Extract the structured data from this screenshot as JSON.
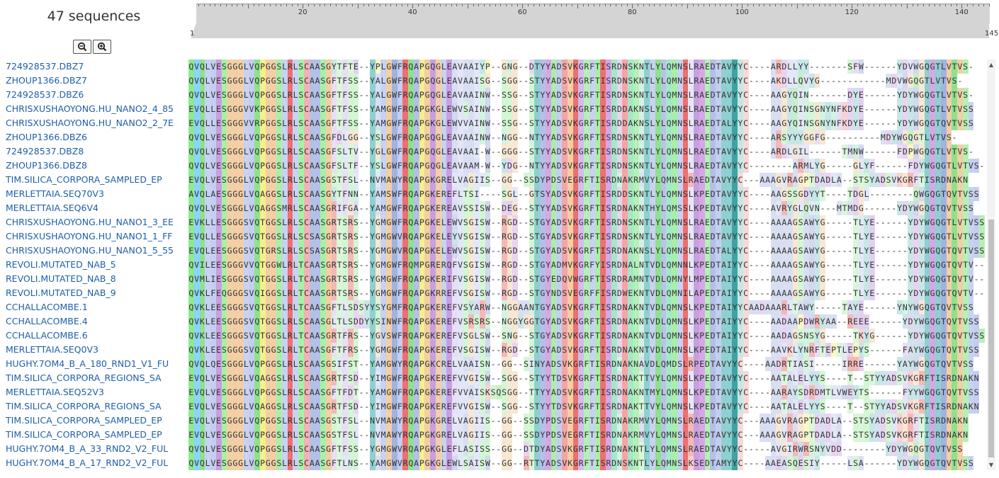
{
  "header": {
    "sequence_count": "47 sequences"
  },
  "ruler": {
    "ticks": [
      "20",
      "40",
      "60",
      "80",
      "100",
      "120",
      "140"
    ],
    "start_label": "1",
    "end_label": "145"
  },
  "zoom": {
    "out_icon": "zoom-out-icon",
    "in_icon": "zoom-in-icon"
  },
  "sequences": [
    {
      "name": "724928537.DBZ7",
      "seq": "QVQLVESGGGLVQPGGSLRLSCAASGYTFTE--YPLGWFRQAPGQGLEAVAAIYP--GNG--DTYYADSVKGRFTISRDNSKNTLYLQMNSLRAEDTAVYYC----ARDLLYY-------SFW------YDVWGQGTLVTVS-"
    },
    {
      "name": "ZHOUP1366.DBZ7",
      "seq": "QVQLVESGGGLVQPGGSLRLSCAASGFTFSS--YALGWFRQAPGQGLEAVAAISG--SGG--STYYADSVKGRFTISRDNSKNTLYLQMNSLRAEDTAVYYC----AKDLLQVYG------------MDVWGQGTLVTVS-"
    },
    {
      "name": "724928537.DBZ6",
      "seq": "QVQLVESGGGLVQPGGSLRLSCAASGFTFSS--YALGWFRQAPGQGLEAVAAINW--SSG--STYYADSVKGRFTISRDNSKNTLYLQMNSLRAEDTAVYYC----AAGYQIN-------DYE------YDYWGQGTLVTVS-"
    },
    {
      "name": "CHRISXUSHAOYONG.HU_NANO2_4_85",
      "seq": "EVQLLESGGGVVKPGGSLRLSCAASGFTFSS--YAMGWFRQAPGKGLEWVSAINW--SSG--STYYADSVKGRFTISRDDAKNSLYLQMNSLRAEDTAVYYC----AAGYQINSGNYNFKDYE------YDYWGQGTLVTVSS"
    },
    {
      "name": "CHRISXUSHAOYONG.HU_NANO2_2_7E",
      "seq": "EVQLLESGGGVVRPGGSLRLSCAASGFTFSS--YAMGWFRQAPGKGLEWVVAINW--SSG--STYYADSVKGRFTISRDDAKNSLYLQMNSLRAEDTALYYC----AAGYQINSGNYNFKDYE------YDYWGQGTQVTVSS"
    },
    {
      "name": "ZHOUP1366.DBZ6",
      "seq": "QVQLVESGGGLVQPGGSLRLSCAASGFDLGG--YSLGWFRQAPGQGLEAVAAINW--NGG--NTYYADSVKGRFTISRDNSKNTLYLQMNSLRAEDTAVYYC----ARSYYYGGFG----------MDYWGQGTLVTVS-"
    },
    {
      "name": "724928537.DBZ8",
      "seq": "QVQLVESGGGLVQPGGSLRLSCAASGFSLTV--YGLGWFRQAPGQGLEAVAAI-W--GGG--STYYADSVKGRFTISRDNSKNTLYLQMNSLRAEDTAVYYC----ARDLGIL------TMNW------FDPWGQGTLVTVS-"
    },
    {
      "name": "ZHOUP1366.DBZ8",
      "seq": "QVQLVESGGGLVQPGGSLRLSCAASGFSLTF--YSLGWFRQAPGQGLEAVAAM-W--YDG--NTYYADSVKGRFTISRDNSKNTLYLQMNSLRAEDTAVYYC--------ARMLYG-----GLYF------FDYWGQGTLVTVS-"
    },
    {
      "name": "TIM.SILICA_CORPORA_SAMPLED_EP",
      "seq": "EVQLVESGGGLVQPGGSLRLSCAASGSTFSL--NVMAWYRQAPGKGRELVAGIIS--GG--SSDYPDSVEGRFTISRDNAKRMVYLQMNSLRAEDTAVYYC---AAAGVRAGPTDADLA--STSYADSVKGRFTISRDNAKN"
    },
    {
      "name": "MERLETTAIA.SEQ70V3",
      "seq": "AVQLAESGGGLVQAGGSLRLSCAASGYTFNN--YAMSWFRQAPGKEREFLTSI----SGL--GTSYADSVKGRFTISRDDSKNTLYLQMNSLKPEDTAVYYC----AAGSSGDYYT----TDGL--------QWGQGTQVTVSS"
    },
    {
      "name": "MERLETTAIA.SEQ6V4",
      "seq": "QVQLVESGGGLVQAGGSMRLSCAASGRIFGA--YAMGWFRQAPGKEREAVSSISW--DEG--STYYADSVKGRFTISRDNAKNTHYLQMSSLKPEDTAVYYC----AVRYGLQVN---MTMDG------YDYWGQGTQVTVSS"
    },
    {
      "name": "CHRISXUSHAOYONG.HU_NANO1_3_EE",
      "seq": "EVKLLESGGGSVQTGGSLRLSCAASGRTSRS--YGMGWFRQAPGKELEWVSGISW--RGD--STGYADSVKGRFTISRDNSKNTLYLQMNSLRAEDTAVYYC----AAAAGSAWYG-----TLYE------YDYWGQGTLVTVSS"
    },
    {
      "name": "CHRISXUSHAOYONG.HU_NANO1_1_FF",
      "seq": "EVQLLESGGGSVQTGGSLRLSCSASGRTSRS--YGMGWVRQAPGKELEYVSGISW--RGD--STGYADSVKGRFTISRDNSKNTLYLQMNSLRAEDTAVYYC----AAAAGSAWYG-----TLYE------YDYWGQGTLVTVSS"
    },
    {
      "name": "CHRISXUSHAOYONG.HU_NANO1_5_55",
      "seq": "EVQLEESGGGSVQTGRSLRLSCSASGRTSRS--YGMGWVRQAPGKELEWVSGISW--RGD--STGYADSVKGRFTISRDNAKNSLYLQMNSLRAEDTALYYC----AAAAGSAWYG-----TLYE------YDYWGQGTQVTVSS"
    },
    {
      "name": "REVOLI.MUTATED_NAB_5",
      "seq": "QVILEESGGGVVQTGGWLRLTCAASGRTSRS--YGMGWFRQMPGRERQFVSGISW--RGD--STGYADMVKGRFYISRDNALNTVDLQMNNLKPEDTAIYYC----AAAAGSAWYG-----TLYE------YDYWGQGTQVTV--"
    },
    {
      "name": "REVOLI.MUTATED_NAB_8",
      "seq": "QVMLIESGGGSVQTGGSLRLTCAASGRTSRS--YGMGWFRQAPGKERIFVSGISW--RGD--STGYEDQVWGRFTISRDRAMNTVDLQMNYLMPEDTAIYYC----AAAAGSAWYG-----TLYE------YDYWGQGTQVTV--"
    },
    {
      "name": "REVOLI.MUTATED_NAB_9",
      "seq": "QVKLFEQGGGSVQIGGSLRLTCAASGRTSRS--YGMGWFRQAPGKRREFVSGISW--RGD--STGYNDSVEGRFFISRDWEKNTVDLQMNILAPEDTAIYYC----AAAAGSAWYG-----TLYE------YDYWGQGTQVTV--"
    },
    {
      "name": "CCHALLACOMBE.1",
      "seq": "QVKLEESGGGSVQTGGSLRLTCAASGFTLSDSYYSYGMFRQAPGKEREFVSYARW--NGGAANTGYADSVKGRFTISRDNAKNTVDLQMNSLKPEDTAIYYCAADAAARLTAWY-----TAYE------YNYWGQGTQVTVSS"
    },
    {
      "name": "CCHALLACOMBE.4",
      "seq": "QVKLEESGGGSVQTGGSLRLSCAASGLTLSDDYYSINWFRQAPGKEREFVSRSRS--NGGYGGTGYADSVKGRFTISRDNAKNTVDLQMNSLKPEDTAIYYC----AADAAPDWRYAA--REEE------YDYWGQGTQVTVSS"
    },
    {
      "name": "CCHALLACOMBE.6",
      "seq": "QVKLEESGGGSVQTGGSLRLTCAASGRTFRS--YGVSWFRQAPGKEREFVSGLSW--SNG--STGYADSVKGRFTISRDNAKNTVDLQMNSLKPEDTAIYYC----AADAGSNSYG-----TKYG------YDYWGQGTQVTVSS"
    },
    {
      "name": "MERLETTAIA.SEQ0V3",
      "seq": "QVKLEESGGGSVQTGGSLRLTCAASGFTFRS--YGMGWFRQAPGKEREFVSGISW--RGD--STGYADSVKGRFTISRDNAKNTVDLQMNSLKPEDTAIYYC----AAVKLYNRFTEPTLEPYS------FAYWGQGTQVTVSS"
    },
    {
      "name": "HUGHY.7OM4_B_A_180_RND1_V1_FU",
      "seq": "QVQLQESGGGLVQPGGSLRLSCAASGSIFST--YAMGWYRQAPGKCRELVAAISN--GG--SINYADSVKGRFTISRDNAKNAVDLQMDSLRPEDTAVYYC----AADRTIASI-----IRRE------YAYWGQGTQVTVSS"
    },
    {
      "name": "TIM.SILICA_CORPORA_REGIONS_SA",
      "seq": "EVQLVESGGGLVQAGGSLRLSCAASGRTFSD--YIMGWFRQAPGKEREFVVGISW--SGG--STYYTDSVKGRFTISRDNAKTTVYLQMNSLKPEDTAVYYC----AATALELYYS----T--STYYADSVKGRFTISRDNAKN"
    },
    {
      "name": "MERLETTAIA.SEQ52V3",
      "seq": "EVQLVESGGGLVQPGGSLRLSCAASGFTFDT--YAMGWFRQAPGKEREFVVAISKSQSGG--TTYYADSVKGRFTISRDNAKNTMYLQMNSLKPEDTAVYYC----AARAYSDRDMTLVWEYTS------FYYWGQGTQVTVSS"
    },
    {
      "name": "TIM.SILICA_CORPORA_REGIONS_SA",
      "seq": "EVQLVESGGGLVQAGGSLRLSCAASGRTFSD--YIMGWFRQAPGKEREFVVGISW--SGG--STYYTDSVKGRFTISRDNAKTTVYLQMNSLKPEDTAVYYC----AATALELYYS----T--STYYADSVKGRFTISRDNAKN"
    },
    {
      "name": "TIM.SILICA_CORPORA_SAMPLED_EP",
      "seq": "EVQLVESGGGLVQPGGSLRLSCAASGSTFSL--NVMAWYRQAPGKGRELVAGIIS--GG--SSDYPDSVEGRFTISRDNAKRMVYLQMNSLRAEDTAVYYC---AAAGVRAGPTDADLA--STSYADSVKGRFTISRDNAKN"
    },
    {
      "name": "TIM.SILICA_CORPORA_SAMPLED_EP",
      "seq": "EVQLVESGGGLVQPGGSLRLSCAASGSTFSL--NVMAWYRQAPGKGRELVAGIIS--GG--SSDYPDSVEGRFTISRDNAKRMVYLQMNSLRAEDTAVYYC---AAAGVRAGPTDADLA--STSYADSVKGRFTISRDNAKN"
    },
    {
      "name": "HUGHY.7OM4_B_A_33_RND2_V2_FUL",
      "seq": "QVQLVESGGGLVQPGGSLRLSCAASGFTFSS--YGMGWVRQAPGKGLEFLASISS--GG--DTDYADSVKGRFTISRDNAKNTLYLQMNSLRAEDTAVYYC-----AVGIRWRSNYVDD--------YDYWGQGTQVTVSS"
    },
    {
      "name": "HUGHY.7OM4_B_A_17_RND2_V2_FUL",
      "seq": "QVQLVESGGGLVQPGGSLRLSCAASGFTLNS--YAMGWVRQAPGKGLEWLSAISW--GG--RTTYADSVKGRFTISRDNSKNTLYLQMNSLKSEDTAMYYC----AAEASQESIY-----LSA------YDYWGQGTQVTVSS"
    }
  ],
  "colors": {
    "A": "#b3c0e8",
    "V": "#c5cef0",
    "L": "#c8d2f2",
    "I": "#c8d2f2",
    "M": "#b9c4ea",
    "F": "#d1bdf0",
    "W": "#a3b2e0",
    "G": "#f2cfa5",
    "P": "#f5f08a",
    "S": "#a8f0a8",
    "T": "#b5f0b5",
    "N": "#a5e8c8",
    "Q": "#8ee28e",
    "C": "#f2b3b3",
    "Y": "#8fd0d0",
    "D": "#d6a8e6",
    "E": "#c8a0e0",
    "K": "#f5a5a5",
    "R": "#ee7070",
    "H": "#c0e4e4",
    "-": "#ffffff"
  },
  "column_highlights": {
    "1": "#90e890",
    "2": "#8bd4ff",
    "3": "#8ee28e",
    "4": "#c8d2f2",
    "5": "#c5cef0",
    "6": "#c8a0e0",
    "7": "#a8f0a8",
    "8": "#f2cfa5",
    "9": "#f2cfa5",
    "10": "#f2cfa5",
    "11": "#c8d2f2",
    "12": "#c5cef0",
    "13": "#8ee28e",
    "14": "#f5f08a",
    "15": "#f2cfa5",
    "16": "#f2cfa5",
    "17": "#a8f0a8",
    "18": "#c8d2f2",
    "19": "#ee7070",
    "20": "#c8d2f2",
    "21": "#a8f0a8",
    "22": "#f2b3b3",
    "23": "#b3c0e8",
    "24": "#b3c0e8",
    "25": "#a8f0a8",
    "26": "#f2cfa5",
    "34": "#8fd0d0",
    "36": "#c8d2f2",
    "37": "#f2cfa5",
    "38": "#a3b2e0",
    "39": "#c5cef0",
    "40": "#ee7070",
    "41": "#8ee28e",
    "42": "#b3c0e8",
    "43": "#f5f08a",
    "44": "#f2cfa5",
    "45": "#c8a0e0",
    "46": "#f2cfa5",
    "47": "#c8d2f2",
    "48": "#c8a0e0",
    "64": "#8fd0d0",
    "65": "#b3c0e8",
    "66": "#d6a8e6",
    "67": "#a8f0a8",
    "68": "#c5cef0",
    "69": "#f5a5a5",
    "70": "#f2cfa5",
    "71": "#ee7070",
    "72": "#d1bdf0",
    "73": "#b5f0b5",
    "74": "#c8d2f2",
    "75": "#a8f0a8",
    "76": "#ee7070",
    "77": "#d6a8e6",
    "78": "#a5e8c8",
    "80": "#f5a5a5",
    "81": "#a5e8c8",
    "82": "#b5f0b5",
    "84": "#8fd0d0",
    "85": "#c8d2f2",
    "86": "#8ee28e",
    "87": "#b9c4ea",
    "88": "#a5e8c8",
    "89": "#a8f0a8",
    "90": "#c8d2f2",
    "91": "#ee7070",
    "93": "#c8a0e0",
    "94": "#d6a8e6",
    "95": "#b5f0b5",
    "96": "#b3c0e8",
    "97": "#c5cef0",
    "98": "#8fd0d0",
    "99": "#8fd0d0",
    "100": "#3fa3a3",
    "135": "#8fd0d0",
    "136": "#d6a8e6",
    "137": "#8fd0d0",
    "138": "#a3b2e0",
    "139": "#f2cfa5",
    "140": "#8ee28e",
    "141": "#f2cfa5",
    "142": "#b5f0b5",
    "143": "#c8d2f2",
    "144": "#c5cef0",
    "145": "#b5f0b5"
  }
}
